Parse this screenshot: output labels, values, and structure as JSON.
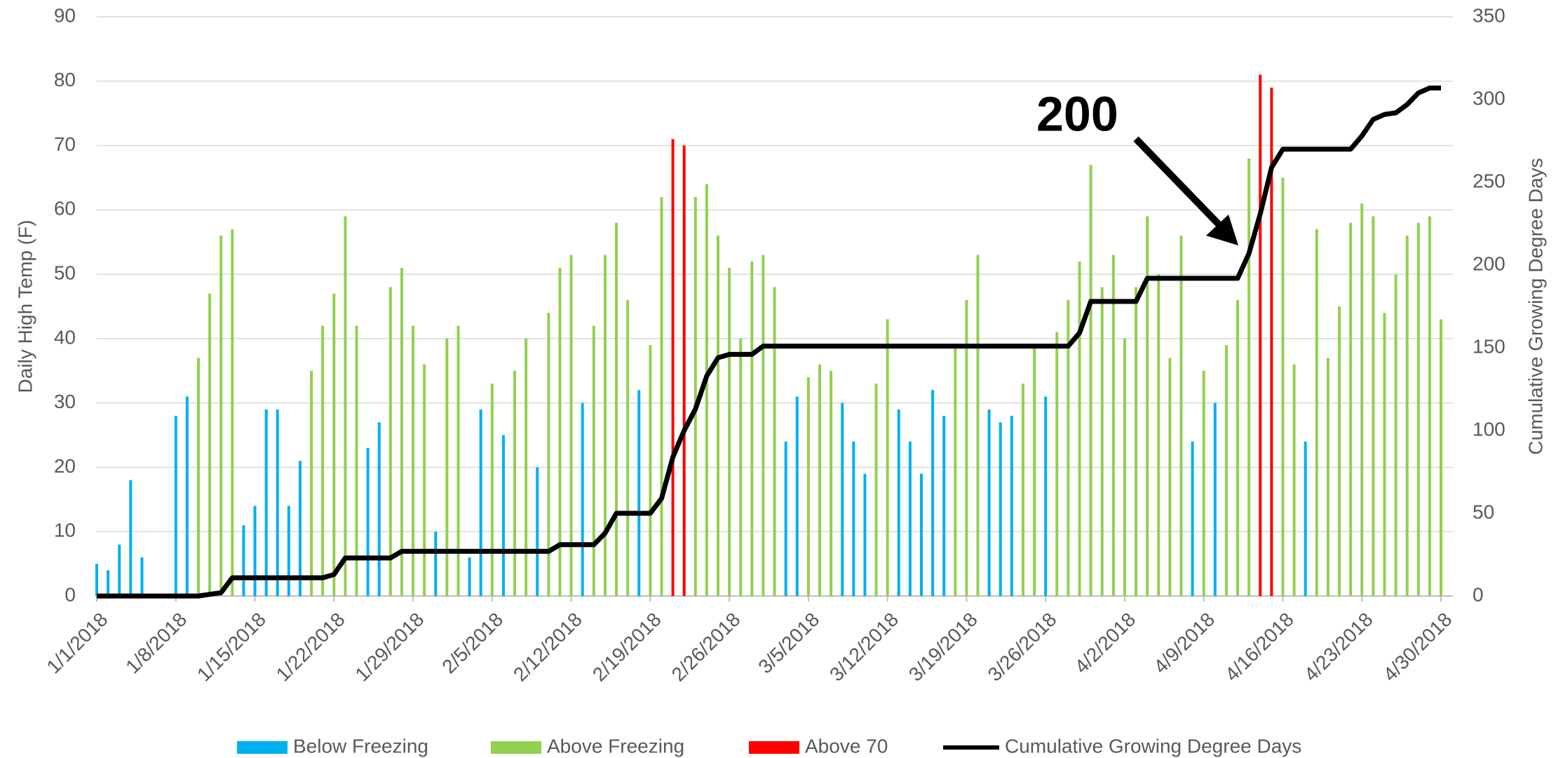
{
  "chart_data": {
    "type": "bar_line",
    "y_label": "Daily High Temp (F)",
    "y2_label": "Cumulative Growing Degree Days",
    "annotations": [
      {
        "text": "200"
      }
    ],
    "categories": [
      "1/1/2018",
      null,
      null,
      null,
      null,
      null,
      null,
      "1/8/2018",
      null,
      null,
      null,
      null,
      null,
      null,
      "1/15/2018",
      null,
      null,
      null,
      null,
      null,
      null,
      "1/22/2018",
      null,
      null,
      null,
      null,
      null,
      null,
      "1/29/2018",
      null,
      null,
      null,
      null,
      null,
      null,
      "2/5/2018",
      null,
      null,
      null,
      null,
      null,
      null,
      "2/12/2018",
      null,
      null,
      null,
      null,
      null,
      null,
      "2/19/2018",
      null,
      null,
      null,
      null,
      null,
      null,
      "2/26/2018",
      null,
      null,
      null,
      null,
      null,
      null,
      "3/5/2018",
      null,
      null,
      null,
      null,
      null,
      null,
      "3/12/2018",
      null,
      null,
      null,
      null,
      null,
      null,
      "3/19/2018",
      null,
      null,
      null,
      null,
      null,
      null,
      "3/26/2018",
      null,
      null,
      null,
      null,
      null,
      null,
      "4/2/2018",
      null,
      null,
      null,
      null,
      null,
      null,
      "4/9/2018",
      null,
      null,
      null,
      null,
      null,
      null,
      "4/16/2018",
      null,
      null,
      null,
      null,
      null,
      null,
      "4/23/2018",
      null,
      null,
      null,
      null,
      null,
      null,
      "4/30/2018"
    ],
    "series": [
      {
        "name": "Below Freezing",
        "color": "#00b0f0",
        "kind": "bar",
        "values": [
          5,
          4,
          8,
          18,
          6,
          null,
          null,
          28,
          31,
          null,
          null,
          null,
          null,
          11,
          14,
          29,
          29,
          14,
          21,
          null,
          null,
          null,
          null,
          null,
          23,
          27,
          null,
          null,
          null,
          null,
          10,
          null,
          null,
          6,
          29,
          null,
          25,
          null,
          null,
          20,
          null,
          null,
          null,
          30,
          null,
          null,
          null,
          null,
          32,
          null,
          null,
          null,
          null,
          null,
          null,
          null,
          null,
          null,
          null,
          null,
          null,
          24,
          31,
          null,
          null,
          null,
          30,
          24,
          19,
          null,
          null,
          29,
          24,
          19,
          32,
          28,
          null,
          null,
          null,
          29,
          27,
          28,
          null,
          null,
          31,
          null,
          null,
          null,
          null,
          null,
          null,
          null,
          null,
          null,
          null,
          null,
          null,
          24,
          null,
          30,
          null,
          null,
          null,
          null,
          null,
          null,
          null,
          24,
          null,
          null,
          null,
          null,
          null,
          null,
          null,
          null,
          null,
          null,
          null,
          null
        ]
      },
      {
        "name": "Above Freezing",
        "color": "#92d050",
        "kind": "bar",
        "values": [
          null,
          null,
          null,
          null,
          null,
          null,
          null,
          null,
          null,
          37,
          47,
          56,
          57,
          null,
          null,
          null,
          null,
          null,
          null,
          35,
          42,
          47,
          59,
          42,
          null,
          null,
          48,
          51,
          42,
          36,
          null,
          40,
          42,
          null,
          null,
          33,
          null,
          35,
          40,
          null,
          44,
          51,
          53,
          null,
          42,
          53,
          58,
          46,
          null,
          39,
          62,
          null,
          null,
          62,
          64,
          56,
          51,
          40,
          52,
          53,
          48,
          null,
          null,
          34,
          36,
          35,
          null,
          null,
          null,
          33,
          43,
          null,
          null,
          null,
          null,
          null,
          39,
          46,
          53,
          null,
          null,
          null,
          33,
          39,
          null,
          41,
          46,
          52,
          67,
          48,
          53,
          40,
          48,
          59,
          50,
          37,
          56,
          null,
          35,
          null,
          39,
          46,
          68,
          null,
          null,
          65,
          36,
          null,
          57,
          37,
          45,
          58,
          61,
          59,
          44,
          50,
          56,
          58,
          59,
          43
        ]
      },
      {
        "name": "Above 70",
        "color": "#ff0000",
        "kind": "bar",
        "values": [
          null,
          null,
          null,
          null,
          null,
          null,
          null,
          null,
          null,
          null,
          null,
          null,
          null,
          null,
          null,
          null,
          null,
          null,
          null,
          null,
          null,
          null,
          null,
          null,
          null,
          null,
          null,
          null,
          null,
          null,
          null,
          null,
          null,
          null,
          null,
          null,
          null,
          null,
          null,
          null,
          null,
          null,
          null,
          null,
          null,
          null,
          null,
          null,
          null,
          null,
          null,
          71,
          70,
          null,
          null,
          null,
          null,
          null,
          null,
          null,
          null,
          null,
          null,
          null,
          null,
          null,
          null,
          null,
          null,
          null,
          null,
          null,
          null,
          null,
          null,
          null,
          null,
          null,
          null,
          null,
          null,
          null,
          null,
          null,
          null,
          null,
          null,
          null,
          null,
          null,
          null,
          null,
          null,
          null,
          null,
          null,
          null,
          null,
          null,
          null,
          null,
          null,
          null,
          81,
          79,
          null,
          null,
          null,
          null,
          null,
          null,
          null,
          null,
          null,
          null,
          null,
          null,
          null,
          null,
          null
        ]
      },
      {
        "name": "Cumulative Growing Degree Days",
        "color": "#000000",
        "kind": "line",
        "axis": "y2",
        "values": [
          0,
          0,
          0,
          0,
          0,
          0,
          0,
          0,
          0,
          0,
          1,
          2,
          11,
          11,
          11,
          11,
          11,
          11,
          11,
          11,
          11,
          13,
          23,
          23,
          23,
          23,
          23,
          27,
          27,
          27,
          27,
          27,
          27,
          27,
          27,
          27,
          27,
          27,
          27,
          27,
          27,
          31,
          31,
          31,
          31,
          38,
          50,
          50,
          50,
          50,
          59,
          84,
          100,
          113,
          133,
          144,
          146,
          146,
          146,
          151,
          151,
          151,
          151,
          151,
          151,
          151,
          151,
          151,
          151,
          151,
          151,
          151,
          151,
          151,
          151,
          151,
          151,
          151,
          151,
          151,
          151,
          151,
          151,
          151,
          151,
          151,
          151,
          159,
          178,
          178,
          178,
          178,
          178,
          192,
          192,
          192,
          192,
          192,
          192,
          192,
          192,
          192,
          207,
          231,
          259,
          270,
          270,
          270,
          270,
          270,
          270,
          270,
          278,
          288,
          291,
          292,
          297,
          304,
          307,
          307
        ]
      }
    ],
    "ylim": [
      0,
      90
    ],
    "yticks": [
      0,
      10,
      20,
      30,
      40,
      50,
      60,
      70,
      80,
      90
    ],
    "y2lim": [
      0,
      350
    ],
    "y2ticks": [
      0,
      50,
      100,
      150,
      200,
      250,
      300,
      350
    ],
    "grid": true,
    "legend": "bottom"
  }
}
